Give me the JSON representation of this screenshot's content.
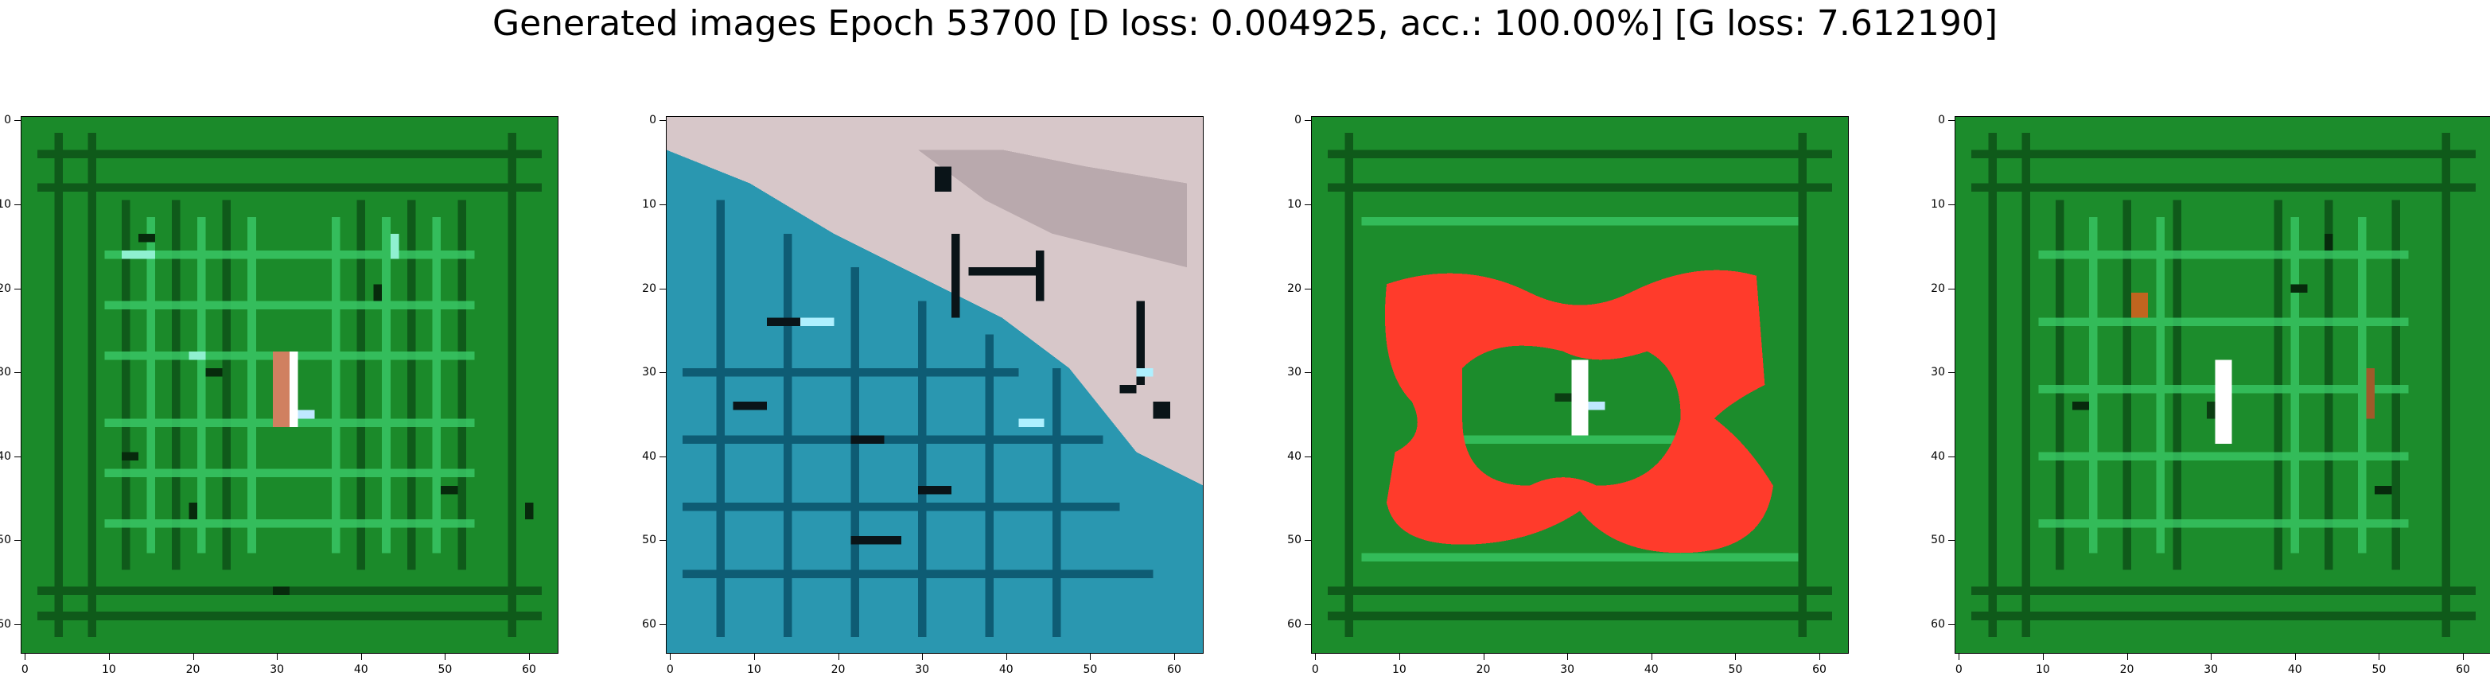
{
  "figure": {
    "suptitle": "Generated images Epoch 53700 [D loss: 0.004925, acc.: 100.00%] [G loss: 7.612190]"
  },
  "chart_data": [
    {
      "type": "heatmap",
      "title": "",
      "xlabel": "",
      "ylabel": "",
      "xlim": [
        -0.5,
        63.5
      ],
      "ylim": [
        63.5,
        -0.5
      ],
      "xticks": [
        "0",
        "10",
        "20",
        "30",
        "40",
        "50",
        "60"
      ],
      "yticks": [
        "0",
        "10",
        "20",
        "30",
        "40",
        "50",
        "60"
      ],
      "grid": false,
      "dominant_colors": [
        "#1a8c2a",
        "#3fd16a",
        "#0b3d12",
        "#e8f4ff"
      ]
    },
    {
      "type": "heatmap",
      "title": "",
      "xlabel": "",
      "ylabel": "",
      "xlim": [
        -0.5,
        63.5
      ],
      "ylim": [
        63.5,
        -0.5
      ],
      "xticks": [
        "0",
        "10",
        "20",
        "30",
        "40",
        "50",
        "60"
      ],
      "yticks": [
        "0",
        "10",
        "20",
        "30",
        "40",
        "50",
        "60"
      ],
      "grid": false,
      "dominant_colors": [
        "#2a9bb3",
        "#0e5a73",
        "#d9c8c8",
        "#0a1418"
      ]
    },
    {
      "type": "heatmap",
      "title": "",
      "xlabel": "",
      "ylabel": "",
      "xlim": [
        -0.5,
        63.5
      ],
      "ylim": [
        63.5,
        -0.5
      ],
      "xticks": [
        "0",
        "10",
        "20",
        "30",
        "40",
        "50",
        "60"
      ],
      "yticks": [
        "0",
        "10",
        "20",
        "30",
        "40",
        "50",
        "60"
      ],
      "grid": false,
      "dominant_colors": [
        "#1c8f2c",
        "#ff3b2b",
        "#0b3d12",
        "#e8f4ff"
      ]
    },
    {
      "type": "heatmap",
      "title": "",
      "xlabel": "",
      "ylabel": "",
      "xlim": [
        -0.5,
        63.5
      ],
      "ylim": [
        63.5,
        -0.5
      ],
      "xticks": [
        "0",
        "10",
        "20",
        "30",
        "40",
        "50",
        "60"
      ],
      "yticks": [
        "0",
        "10",
        "20",
        "30",
        "40",
        "50",
        "60"
      ],
      "grid": false,
      "dominant_colors": [
        "#1c8f2c",
        "#3fd16a",
        "#c0651f",
        "#e8f4ff"
      ]
    }
  ]
}
